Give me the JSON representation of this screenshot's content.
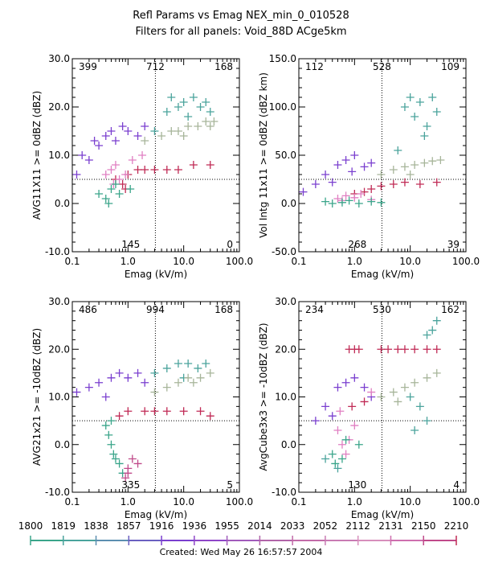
{
  "title": "Refl Params vs Emag    NEX_min_0_010528",
  "subtitle": "Filters for all panels:  Void_88D ACge5km",
  "footer": "Created: Wed May 26 16:57:57 2004",
  "colorbar": {
    "labels": [
      "1800",
      "1819",
      "1838",
      "1857",
      "1916",
      "1936",
      "1955",
      "2014",
      "2033",
      "2052",
      "2112",
      "2131",
      "2150",
      "2210"
    ],
    "colors": [
      "#3aa58a",
      "#4aa39c",
      "#5c8fb0",
      "#6a5fc0",
      "#7a3fcf",
      "#8f46c8",
      "#a15bbb",
      "#b164a8",
      "#c26aa8",
      "#c97bb3",
      "#d78fbc",
      "#ce6fae",
      "#c04a8a",
      "#c02a55"
    ]
  },
  "chart_data": [
    {
      "type": "scatter",
      "panel": "top-left",
      "xlabel": "Emag (kV/m)",
      "ylabel": "AVG11X11 >= 0dBZ (dBZ)",
      "xscale": "log",
      "xlim": [
        0.1,
        100.0
      ],
      "ylim": [
        -10.0,
        30.0
      ],
      "xticks": [
        "0.1",
        "1.0",
        "10.0",
        "100.0"
      ],
      "yticks": [
        "-10.0",
        "0.0",
        "10.0",
        "20.0",
        "30.0"
      ],
      "xref": 3.1,
      "yref": 5.0,
      "quadrant_counts": {
        "upper_left": "399",
        "upper_mid": "712",
        "upper_right": "168",
        "lower_mid": "145",
        "lower_right": "0"
      },
      "series": [
        {
          "color": "#7a3fcf",
          "points": [
            [
              0.12,
              6
            ],
            [
              0.2,
              9
            ],
            [
              0.3,
              12
            ],
            [
              0.4,
              14
            ],
            [
              0.5,
              15
            ],
            [
              0.6,
              13
            ],
            [
              0.8,
              16
            ],
            [
              1.0,
              15
            ],
            [
              1.5,
              14
            ],
            [
              2.0,
              16
            ],
            [
              0.15,
              10
            ],
            [
              0.25,
              13
            ]
          ]
        },
        {
          "color": "#4aa39c",
          "points": [
            [
              3,
              15
            ],
            [
              5,
              19
            ],
            [
              8,
              20
            ],
            [
              10,
              21
            ],
            [
              15,
              22
            ],
            [
              20,
              20
            ],
            [
              25,
              21
            ],
            [
              6,
              22
            ],
            [
              12,
              18
            ],
            [
              30,
              19
            ]
          ]
        },
        {
          "color": "#a7b59a",
          "points": [
            [
              2,
              13
            ],
            [
              4,
              14
            ],
            [
              6,
              15
            ],
            [
              8,
              15
            ],
            [
              12,
              16
            ],
            [
              18,
              16
            ],
            [
              25,
              17
            ],
            [
              35,
              17
            ],
            [
              10,
              14
            ],
            [
              30,
              16
            ]
          ]
        },
        {
          "color": "#c02a55",
          "points": [
            [
              0.6,
              5
            ],
            [
              0.8,
              4
            ],
            [
              1.0,
              6
            ],
            [
              1.5,
              7
            ],
            [
              2,
              7
            ],
            [
              3,
              7
            ],
            [
              5,
              7
            ],
            [
              8,
              7
            ],
            [
              15,
              8
            ],
            [
              30,
              8
            ],
            [
              0.9,
              3
            ]
          ]
        },
        {
          "color": "#e07fc2",
          "points": [
            [
              0.4,
              6
            ],
            [
              0.5,
              7
            ],
            [
              0.6,
              8
            ],
            [
              0.7,
              5
            ],
            [
              0.9,
              6
            ],
            [
              1.2,
              9
            ],
            [
              1.8,
              10
            ],
            [
              0.55,
              4
            ]
          ]
        },
        {
          "color": "#3aa58a",
          "points": [
            [
              0.3,
              2
            ],
            [
              0.4,
              1
            ],
            [
              0.5,
              3
            ],
            [
              0.7,
              2
            ],
            [
              0.45,
              0
            ],
            [
              0.6,
              4
            ],
            [
              1.1,
              3
            ]
          ]
        }
      ]
    },
    {
      "type": "scatter",
      "panel": "top-right",
      "xlabel": "Emag (kV/m)",
      "ylabel": "Vol Intg 11x11 >= 0dBZ (dBZ km)",
      "xscale": "log",
      "xlim": [
        0.1,
        100.0
      ],
      "ylim": [
        -50.0,
        150.0
      ],
      "xticks": [
        "0.1",
        "1.0",
        "10.0",
        "100.0"
      ],
      "yticks": [
        "-50.0",
        "0.0",
        "50.0",
        "100.0",
        "150.0"
      ],
      "xref": 3.1,
      "yref": 25.0,
      "quadrant_counts": {
        "upper_left": "112",
        "upper_mid": "528",
        "upper_right": "109",
        "lower_mid": "268",
        "lower_right": "39"
      },
      "series": [
        {
          "color": "#7a3fcf",
          "points": [
            [
              0.12,
              12
            ],
            [
              0.2,
              20
            ],
            [
              0.3,
              30
            ],
            [
              0.5,
              40
            ],
            [
              0.7,
              45
            ],
            [
              1.0,
              50
            ],
            [
              1.5,
              38
            ],
            [
              2,
              42
            ],
            [
              0.4,
              22
            ],
            [
              0.9,
              33
            ]
          ]
        },
        {
          "color": "#4aa39c",
          "points": [
            [
              8,
              100
            ],
            [
              10,
              110
            ],
            [
              12,
              90
            ],
            [
              15,
              105
            ],
            [
              20,
              80
            ],
            [
              25,
              110
            ],
            [
              18,
              70
            ],
            [
              30,
              95
            ],
            [
              6,
              55
            ]
          ]
        },
        {
          "color": "#a7b59a",
          "points": [
            [
              3,
              30
            ],
            [
              5,
              35
            ],
            [
              8,
              38
            ],
            [
              12,
              40
            ],
            [
              18,
              42
            ],
            [
              25,
              44
            ],
            [
              35,
              45
            ],
            [
              10,
              30
            ]
          ]
        },
        {
          "color": "#c02a55",
          "points": [
            [
              1,
              10
            ],
            [
              1.5,
              12
            ],
            [
              2,
              15
            ],
            [
              3,
              18
            ],
            [
              5,
              20
            ],
            [
              8,
              22
            ],
            [
              15,
              20
            ],
            [
              30,
              22
            ]
          ]
        },
        {
          "color": "#e07fc2",
          "points": [
            [
              0.5,
              5
            ],
            [
              0.7,
              8
            ],
            [
              1.0,
              6
            ],
            [
              1.3,
              10
            ],
            [
              0.6,
              3
            ],
            [
              2,
              4
            ]
          ]
        },
        {
          "color": "#3aa58a",
          "points": [
            [
              0.3,
              2
            ],
            [
              0.4,
              0
            ],
            [
              0.6,
              1
            ],
            [
              0.8,
              3
            ],
            [
              1.2,
              0
            ],
            [
              2,
              2
            ],
            [
              3,
              1
            ]
          ]
        }
      ]
    },
    {
      "type": "scatter",
      "panel": "bottom-left",
      "xlabel": "Emag (kV/m)",
      "ylabel": "AVG21x21 >= -10dBZ (dBZ)",
      "xscale": "log",
      "xlim": [
        0.1,
        100.0
      ],
      "ylim": [
        -10.0,
        30.0
      ],
      "xticks": [
        "0.1",
        "1.0",
        "10.0",
        "100.0"
      ],
      "yticks": [
        "-10.0",
        "0.0",
        "10.0",
        "20.0",
        "30.0"
      ],
      "xref": 3.1,
      "yref": 5.0,
      "quadrant_counts": {
        "upper_left": "486",
        "upper_mid": "994",
        "upper_right": "168",
        "lower_mid": "335",
        "lower_right": "5"
      },
      "series": [
        {
          "color": "#7a3fcf",
          "points": [
            [
              0.12,
              11
            ],
            [
              0.2,
              12
            ],
            [
              0.3,
              13
            ],
            [
              0.5,
              14
            ],
            [
              0.7,
              15
            ],
            [
              1.0,
              14
            ],
            [
              1.5,
              15
            ],
            [
              2,
              13
            ],
            [
              0.4,
              10
            ]
          ]
        },
        {
          "color": "#4aa39c",
          "points": [
            [
              3,
              15
            ],
            [
              5,
              16
            ],
            [
              8,
              17
            ],
            [
              12,
              17
            ],
            [
              18,
              16
            ],
            [
              25,
              17
            ],
            [
              10,
              14
            ]
          ]
        },
        {
          "color": "#a7b59a",
          "points": [
            [
              3,
              11
            ],
            [
              5,
              12
            ],
            [
              8,
              13
            ],
            [
              12,
              14
            ],
            [
              20,
              14
            ],
            [
              30,
              15
            ],
            [
              15,
              13
            ]
          ]
        },
        {
          "color": "#c02a55",
          "points": [
            [
              0.7,
              6
            ],
            [
              1.0,
              7
            ],
            [
              2,
              7
            ],
            [
              3,
              7
            ],
            [
              5,
              7
            ],
            [
              10,
              7
            ],
            [
              20,
              7
            ],
            [
              30,
              6
            ]
          ]
        },
        {
          "color": "#3aa58a",
          "points": [
            [
              0.4,
              4
            ],
            [
              0.45,
              2
            ],
            [
              0.5,
              0
            ],
            [
              0.55,
              -2
            ],
            [
              0.6,
              -3
            ],
            [
              0.7,
              -4
            ],
            [
              0.8,
              -6
            ],
            [
              0.5,
              5
            ]
          ]
        },
        {
          "color": "#c04a8a",
          "points": [
            [
              0.9,
              -7
            ],
            [
              1.0,
              -5
            ],
            [
              1.2,
              -3
            ],
            [
              1.0,
              -6
            ],
            [
              1.5,
              -4
            ]
          ]
        }
      ]
    },
    {
      "type": "scatter",
      "panel": "bottom-right",
      "xlabel": "Emag (kV/m)",
      "ylabel": "AvgCube3x3 >= -10dBZ (dBZ)",
      "xscale": "log",
      "xlim": [
        0.1,
        100.0
      ],
      "ylim": [
        -10.0,
        30.0
      ],
      "xticks": [
        "0.1",
        "1.0",
        "10.0",
        "100.0"
      ],
      "yticks": [
        "-10.0",
        "0.0",
        "10.0",
        "20.0",
        "30.0"
      ],
      "xref": 3.1,
      "yref": 5.0,
      "quadrant_counts": {
        "upper_left": "234",
        "upper_mid": "530",
        "upper_right": "162",
        "lower_mid": "130",
        "lower_right": "4"
      },
      "series": [
        {
          "color": "#c02a55",
          "points": [
            [
              0.8,
              20
            ],
            [
              1.0,
              20
            ],
            [
              1.2,
              20
            ],
            [
              3,
              20
            ],
            [
              4,
              20
            ],
            [
              6,
              20
            ],
            [
              8,
              20
            ],
            [
              12,
              20
            ],
            [
              20,
              20
            ],
            [
              30,
              20
            ],
            [
              0.9,
              8
            ],
            [
              1.5,
              9
            ]
          ]
        },
        {
          "color": "#7a3fcf",
          "points": [
            [
              0.2,
              5
            ],
            [
              0.3,
              8
            ],
            [
              0.5,
              12
            ],
            [
              0.7,
              13
            ],
            [
              1.0,
              14
            ],
            [
              1.5,
              12
            ],
            [
              0.4,
              6
            ],
            [
              2,
              10
            ]
          ]
        },
        {
          "color": "#4aa39c",
          "points": [
            [
              20,
              23
            ],
            [
              25,
              24
            ],
            [
              30,
              26
            ],
            [
              10,
              10
            ],
            [
              15,
              8
            ],
            [
              20,
              5
            ],
            [
              12,
              3
            ],
            [
              0.3,
              -3
            ],
            [
              0.5,
              -5
            ]
          ]
        },
        {
          "color": "#a7b59a",
          "points": [
            [
              3,
              10
            ],
            [
              5,
              11
            ],
            [
              8,
              12
            ],
            [
              12,
              13
            ],
            [
              20,
              14
            ],
            [
              30,
              15
            ],
            [
              6,
              9
            ]
          ]
        },
        {
          "color": "#e07fc2",
          "points": [
            [
              0.5,
              3
            ],
            [
              0.6,
              0
            ],
            [
              0.7,
              -2
            ],
            [
              0.8,
              1
            ],
            [
              1.0,
              4
            ],
            [
              0.55,
              7
            ],
            [
              2,
              11
            ]
          ]
        },
        {
          "color": "#3aa58a",
          "points": [
            [
              0.4,
              -2
            ],
            [
              0.45,
              -4
            ],
            [
              0.6,
              -3
            ],
            [
              0.7,
              1
            ],
            [
              1.2,
              0
            ]
          ]
        }
      ]
    }
  ]
}
